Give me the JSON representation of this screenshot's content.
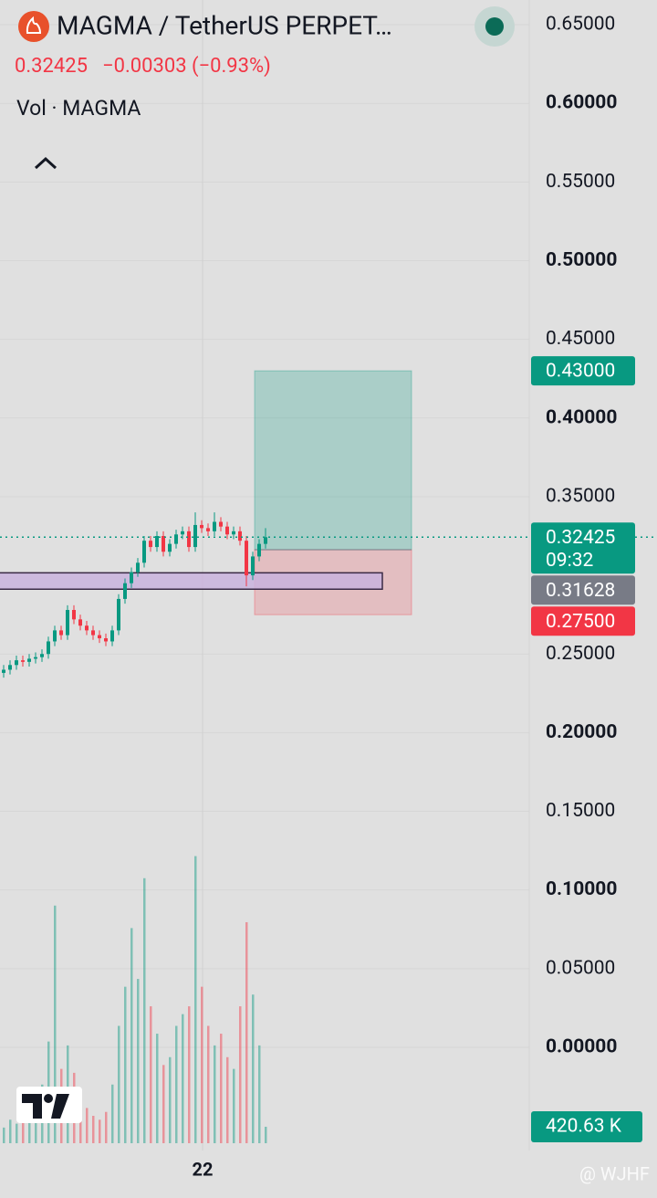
{
  "chart_data": {
    "type": "candlestick",
    "title": "MAGMA / TetherUS PERPET…",
    "price": "0.32425",
    "change": "−0.00303 (−0.93%)",
    "volume_title": "Vol · MAGMA",
    "x_label": "22",
    "watermark": "@ WJHF",
    "ylim": [
      -0.0656,
      0.6657
    ],
    "yticks": [
      {
        "value": 0.65,
        "label": "0.65000"
      },
      {
        "value": 0.6,
        "label": "0.60000"
      },
      {
        "value": 0.55,
        "label": "0.55000"
      },
      {
        "value": 0.5,
        "label": "0.50000"
      },
      {
        "value": 0.45,
        "label": "0.45000"
      },
      {
        "value": 0.4,
        "label": "0.40000"
      },
      {
        "value": 0.35,
        "label": "0.35000"
      },
      {
        "value": 0.25,
        "label": "0.25000"
      },
      {
        "value": 0.2,
        "label": "0.20000"
      },
      {
        "value": 0.15,
        "label": "0.15000"
      },
      {
        "value": 0.1,
        "label": "0.10000"
      },
      {
        "value": 0.05,
        "label": "0.05000"
      },
      {
        "value": 0,
        "label": "0.00000"
      }
    ],
    "grid": true,
    "up_color": "#089981",
    "down_color": "#f23645",
    "open": [
      0.238,
      0.24,
      0.243,
      0.246,
      0.245,
      0.247,
      0.248,
      0.25,
      0.258,
      0.265,
      0.262,
      0.278,
      0.272,
      0.268,
      0.265,
      0.262,
      0.26,
      0.258,
      0.265,
      0.285,
      0.295,
      0.302,
      0.308,
      0.322,
      0.318,
      0.325,
      0.315,
      0.32,
      0.326,
      0.328,
      0.318,
      0.332,
      0.33,
      0.328,
      0.334,
      0.331,
      0.326,
      0.328,
      0.322,
      0.3,
      0.312,
      0.32
    ],
    "high": [
      0.243,
      0.246,
      0.249,
      0.249,
      0.25,
      0.251,
      0.253,
      0.261,
      0.268,
      0.268,
      0.281,
      0.281,
      0.275,
      0.271,
      0.268,
      0.265,
      0.263,
      0.268,
      0.288,
      0.298,
      0.305,
      0.311,
      0.325,
      0.325,
      0.328,
      0.328,
      0.323,
      0.329,
      0.331,
      0.331,
      0.34,
      0.335,
      0.333,
      0.34,
      0.337,
      0.334,
      0.331,
      0.331,
      0.325,
      0.315,
      0.323,
      0.33
    ],
    "low": [
      0.235,
      0.237,
      0.24,
      0.242,
      0.242,
      0.244,
      0.245,
      0.247,
      0.255,
      0.259,
      0.259,
      0.269,
      0.265,
      0.262,
      0.259,
      0.257,
      0.255,
      0.255,
      0.262,
      0.282,
      0.292,
      0.299,
      0.305,
      0.315,
      0.315,
      0.312,
      0.312,
      0.317,
      0.323,
      0.315,
      0.315,
      0.327,
      0.325,
      0.325,
      0.328,
      0.323,
      0.323,
      0.319,
      0.293,
      0.297,
      0.309,
      0.317
    ],
    "close": [
      0.24,
      0.243,
      0.246,
      0.245,
      0.247,
      0.248,
      0.25,
      0.258,
      0.265,
      0.262,
      0.278,
      0.272,
      0.268,
      0.265,
      0.262,
      0.26,
      0.258,
      0.265,
      0.285,
      0.295,
      0.302,
      0.308,
      0.322,
      0.318,
      0.325,
      0.315,
      0.32,
      0.326,
      0.328,
      0.318,
      0.332,
      0.33,
      0.328,
      0.334,
      0.331,
      0.326,
      0.328,
      0.322,
      0.3,
      0.312,
      0.32,
      0.32425
    ],
    "volume": [
      400,
      600,
      500,
      700,
      800,
      900,
      1500,
      2600,
      6075,
      1900,
      2500,
      1800,
      1200,
      900,
      700,
      600,
      800,
      1500,
      3000,
      4000,
      5500,
      4200,
      6775,
      3500,
      2800,
      2000,
      2200,
      3000,
      3300,
      3500,
      7340,
      4000,
      3000,
      2500,
      2800,
      2200,
      1900,
      3500,
      5650,
      3800,
      2500,
      420.63
    ],
    "vlim": [
      0,
      7400
    ],
    "volume_label": {
      "value": 420.63,
      "label": "420.63 K"
    },
    "zone": {
      "top": 0.3016,
      "bottom": 0.2912,
      "color": "#c9b3dd"
    },
    "position": {
      "entry": 0.31628,
      "target": 0.43,
      "stop": 0.275
    },
    "price_tags": [
      {
        "value": 0.43,
        "label": "0.43000",
        "color": "#089981"
      },
      {
        "value": 0.32425,
        "label": "0.32425",
        "sub": "09:32",
        "color": "#089981"
      },
      {
        "value": 0.31628,
        "label": "0.31628",
        "color": "#787b86"
      },
      {
        "value": 0.275,
        "label": "0.27500",
        "color": "#f23645"
      }
    ]
  }
}
